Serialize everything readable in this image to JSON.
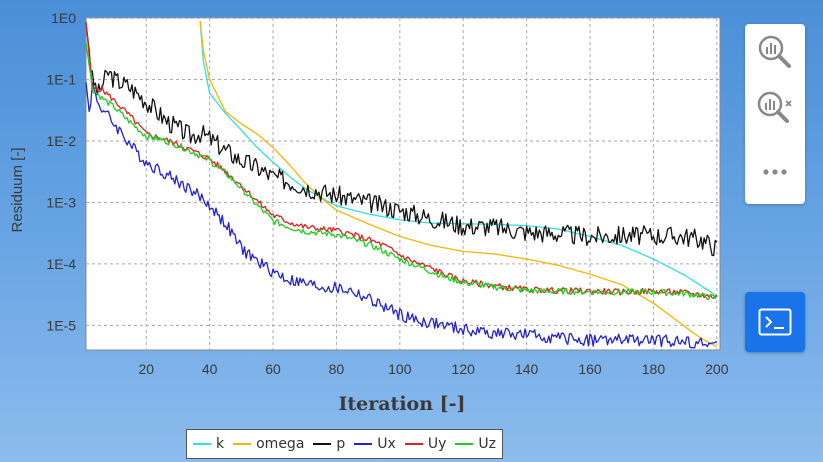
{
  "chart_data": {
    "type": "line",
    "xlabel": "Iteration [-]",
    "ylabel": "Residuum [-]",
    "xlim": [
      1,
      201
    ],
    "ylim_log10": [
      -5.4,
      0
    ],
    "yscale": "log",
    "grid": true,
    "legend_placement": "bottom",
    "x_ticks": [
      20,
      40,
      60,
      80,
      100,
      120,
      140,
      160,
      180,
      200
    ],
    "y_ticks": [
      {
        "value": 1,
        "label": "1E0"
      },
      {
        "value": 0.1,
        "label": "1E-1"
      },
      {
        "value": 0.01,
        "label": "1E-2"
      },
      {
        "value": 0.001,
        "label": "1E-3"
      },
      {
        "value": 0.0001,
        "label": "1E-4"
      },
      {
        "value": 1e-05,
        "label": "1E-5"
      }
    ],
    "series": [
      {
        "name": "k",
        "color": "#33e0e0",
        "noise": 0,
        "seed": 1,
        "points": [
          [
            37,
            0.9
          ],
          [
            38,
            0.2
          ],
          [
            40,
            0.06
          ],
          [
            45,
            0.028
          ],
          [
            50,
            0.015
          ],
          [
            55,
            0.0078
          ],
          [
            60,
            0.0045
          ],
          [
            65,
            0.0027
          ],
          [
            70,
            0.0017
          ],
          [
            75,
            0.0012
          ],
          [
            80,
            0.00088
          ],
          [
            90,
            0.00065
          ],
          [
            100,
            0.00052
          ],
          [
            110,
            0.00046
          ],
          [
            120,
            0.00045
          ],
          [
            130,
            0.00044
          ],
          [
            140,
            0.00042
          ],
          [
            150,
            0.00037
          ],
          [
            160,
            0.00028
          ],
          [
            170,
            0.0002
          ],
          [
            180,
            0.00012
          ],
          [
            190,
            6.5e-05
          ],
          [
            200,
            3e-05
          ]
        ]
      },
      {
        "name": "omega",
        "color": "#f2b705",
        "noise": 0,
        "seed": 2,
        "points": [
          [
            37,
            0.9
          ],
          [
            38,
            0.3
          ],
          [
            40,
            0.1
          ],
          [
            45,
            0.03
          ],
          [
            50,
            0.019
          ],
          [
            55,
            0.013
          ],
          [
            60,
            0.0078
          ],
          [
            65,
            0.0042
          ],
          [
            70,
            0.0021
          ],
          [
            75,
            0.0012
          ],
          [
            80,
            0.00075
          ],
          [
            90,
            0.00045
          ],
          [
            100,
            0.00028
          ],
          [
            110,
            0.0002
          ],
          [
            120,
            0.00016
          ],
          [
            130,
            0.000145
          ],
          [
            140,
            0.00012
          ],
          [
            150,
            9.5e-05
          ],
          [
            160,
            6.8e-05
          ],
          [
            170,
            4.6e-05
          ],
          [
            180,
            2.3e-05
          ],
          [
            190,
            9.5e-06
          ],
          [
            195,
            6.2e-06
          ],
          [
            200,
            4.5e-06
          ]
        ]
      },
      {
        "name": "p",
        "color": "#111111",
        "noise": 0.16,
        "seed": 3,
        "points": [
          [
            1,
            0.85
          ],
          [
            3,
            0.1
          ],
          [
            5,
            0.06
          ],
          [
            8,
            0.13
          ],
          [
            10,
            0.1
          ],
          [
            14,
            0.08
          ],
          [
            18,
            0.055
          ],
          [
            22,
            0.035
          ],
          [
            26,
            0.022
          ],
          [
            30,
            0.016
          ],
          [
            34,
            0.012
          ],
          [
            37,
            0.0135
          ],
          [
            40,
            0.011
          ],
          [
            45,
            0.007
          ],
          [
            50,
            0.0048
          ],
          [
            55,
            0.0037
          ],
          [
            60,
            0.0026
          ],
          [
            65,
            0.0022
          ],
          [
            70,
            0.0018
          ],
          [
            75,
            0.0015
          ],
          [
            80,
            0.0013
          ],
          [
            90,
            0.001
          ],
          [
            100,
            0.00075
          ],
          [
            110,
            0.00055
          ],
          [
            120,
            0.00042
          ],
          [
            130,
            0.0004
          ],
          [
            140,
            0.00033
          ],
          [
            150,
            0.00031
          ],
          [
            160,
            0.00028
          ],
          [
            170,
            0.00029
          ],
          [
            180,
            0.00029
          ],
          [
            190,
            0.00028
          ],
          [
            195,
            0.00025
          ],
          [
            200,
            0.00018
          ]
        ]
      },
      {
        "name": "Ux",
        "color": "#2222cc",
        "noise": 0.1,
        "seed": 4,
        "points": [
          [
            1,
            0.09
          ],
          [
            2,
            0.03
          ],
          [
            3,
            0.08
          ],
          [
            5,
            0.04
          ],
          [
            8,
            0.025
          ],
          [
            12,
            0.014
          ],
          [
            16,
            0.0075
          ],
          [
            20,
            0.0045
          ],
          [
            25,
            0.0032
          ],
          [
            30,
            0.0022
          ],
          [
            35,
            0.0015
          ],
          [
            40,
            0.0009
          ],
          [
            45,
            0.00045
          ],
          [
            50,
            0.00018
          ],
          [
            55,
            0.00011
          ],
          [
            60,
            7.5e-05
          ],
          [
            65,
            5.5e-05
          ],
          [
            70,
            4.8e-05
          ],
          [
            75,
            4.2e-05
          ],
          [
            80,
            4e-05
          ],
          [
            85,
            3.6e-05
          ],
          [
            90,
            2.7e-05
          ],
          [
            95,
            2e-05
          ],
          [
            100,
            1.5e-05
          ],
          [
            105,
            1.2e-05
          ],
          [
            110,
            1.1e-05
          ],
          [
            120,
            8.5e-06
          ],
          [
            130,
            7.5e-06
          ],
          [
            140,
            7e-06
          ],
          [
            150,
            6.2e-06
          ],
          [
            160,
            5.8e-06
          ],
          [
            170,
            5.8e-06
          ],
          [
            180,
            5.7e-06
          ],
          [
            190,
            5.5e-06
          ],
          [
            200,
            4.8e-06
          ]
        ]
      },
      {
        "name": "Uy",
        "color": "#dd2222",
        "noise": 0.05,
        "seed": 5,
        "points": [
          [
            1,
            0.85
          ],
          [
            3,
            0.07
          ],
          [
            6,
            0.07
          ],
          [
            10,
            0.045
          ],
          [
            15,
            0.025
          ],
          [
            20,
            0.013
          ],
          [
            25,
            0.011
          ],
          [
            30,
            0.0088
          ],
          [
            35,
            0.0068
          ],
          [
            40,
            0.0051
          ],
          [
            45,
            0.0032
          ],
          [
            50,
            0.0019
          ],
          [
            55,
            0.00105
          ],
          [
            60,
            0.00062
          ],
          [
            65,
            0.00048
          ],
          [
            70,
            0.0004
          ],
          [
            75,
            0.00037
          ],
          [
            80,
            0.00035
          ],
          [
            85,
            0.0003
          ],
          [
            90,
            0.00025
          ],
          [
            95,
            0.0002
          ],
          [
            100,
            0.00014
          ],
          [
            105,
            0.000105
          ],
          [
            110,
            8.5e-05
          ],
          [
            115,
            6.5e-05
          ],
          [
            120,
            5.2e-05
          ],
          [
            130,
            4.4e-05
          ],
          [
            140,
            3.8e-05
          ],
          [
            150,
            3.7e-05
          ],
          [
            160,
            3.6e-05
          ],
          [
            170,
            3.5e-05
          ],
          [
            180,
            3.6e-05
          ],
          [
            190,
            3.4e-05
          ],
          [
            200,
            2.9e-05
          ]
        ]
      },
      {
        "name": "Uz",
        "color": "#22cc22",
        "noise": 0.05,
        "seed": 6,
        "points": [
          [
            1,
            0.4
          ],
          [
            3,
            0.07
          ],
          [
            6,
            0.05
          ],
          [
            10,
            0.035
          ],
          [
            15,
            0.02
          ],
          [
            20,
            0.012
          ],
          [
            25,
            0.0105
          ],
          [
            30,
            0.0085
          ],
          [
            35,
            0.0065
          ],
          [
            40,
            0.0048
          ],
          [
            45,
            0.003
          ],
          [
            50,
            0.0017
          ],
          [
            55,
            0.0009
          ],
          [
            60,
            0.0005
          ],
          [
            65,
            0.0004
          ],
          [
            70,
            0.00034
          ],
          [
            75,
            0.00032
          ],
          [
            80,
            0.0003
          ],
          [
            85,
            0.00025
          ],
          [
            90,
            0.00021
          ],
          [
            95,
            0.00016
          ],
          [
            100,
            0.00012
          ],
          [
            105,
            9.5e-05
          ],
          [
            110,
            7.5e-05
          ],
          [
            115,
            6e-05
          ],
          [
            120,
            5e-05
          ],
          [
            130,
            4.2e-05
          ],
          [
            140,
            3.7e-05
          ],
          [
            150,
            3.6e-05
          ],
          [
            160,
            3.5e-05
          ],
          [
            170,
            3.5e-05
          ],
          [
            180,
            3.5e-05
          ],
          [
            190,
            3.3e-05
          ],
          [
            200,
            2.8e-05
          ]
        ]
      }
    ]
  },
  "side_panel": {
    "zoom_icon": "zoom-chart-icon",
    "reset_zoom_icon": "reset-zoom-icon",
    "more_icon": "more-options-icon"
  },
  "terminal_icon": "terminal-icon",
  "colors": {
    "plot_bg": "#ffffff",
    "terminal_btn": "#1a73e8",
    "tick_text": "#3a3a3a"
  }
}
